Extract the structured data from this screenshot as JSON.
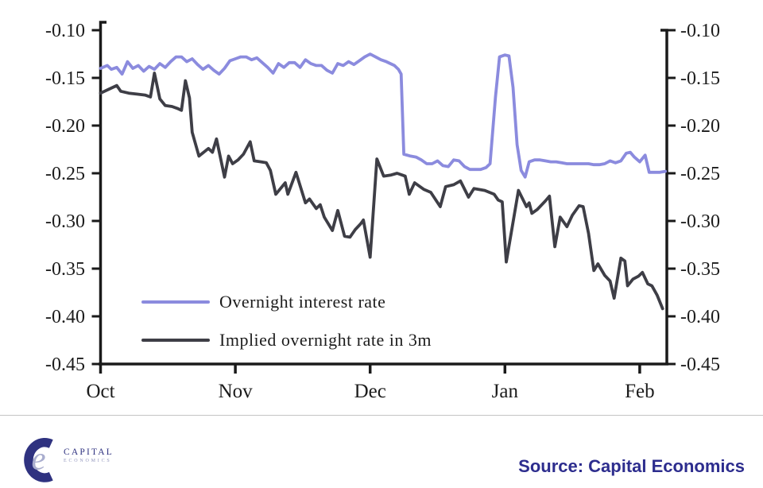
{
  "chart_data": {
    "type": "line",
    "title": "",
    "xlabel": "",
    "ylabel": "",
    "x_unit": "months after Oct tick (0=Oct, 1=Nov, 2=Dec, 3=Jan, 4=Feb)",
    "ylim": [
      -0.45,
      -0.1
    ],
    "y_tick_step": 0.05,
    "y_tick_values": [
      -0.1,
      -0.15,
      -0.2,
      -0.25,
      -0.3,
      -0.35,
      -0.4,
      -0.45
    ],
    "y_tick_labels": [
      "-0.10",
      "-0.15",
      "-0.20",
      "-0.25",
      "-0.30",
      "-0.35",
      "-0.40",
      "-0.45"
    ],
    "x_tick_labels": [
      "Oct",
      "Nov",
      "Dec",
      "Jan",
      "Feb"
    ],
    "y_axis_sides": "both",
    "grid": false,
    "legend_position": "inside-bottom-left",
    "series": [
      {
        "name": "Overnight interest rate",
        "color": "#8b8bde",
        "points": [
          [
            0.0,
            -0.14
          ],
          [
            0.05,
            -0.137
          ],
          [
            0.08,
            -0.141
          ],
          [
            0.12,
            -0.139
          ],
          [
            0.16,
            -0.146
          ],
          [
            0.2,
            -0.133
          ],
          [
            0.24,
            -0.14
          ],
          [
            0.28,
            -0.137
          ],
          [
            0.32,
            -0.143
          ],
          [
            0.36,
            -0.138
          ],
          [
            0.4,
            -0.141
          ],
          [
            0.44,
            -0.135
          ],
          [
            0.48,
            -0.139
          ],
          [
            0.52,
            -0.133
          ],
          [
            0.56,
            -0.128
          ],
          [
            0.6,
            -0.128
          ],
          [
            0.64,
            -0.133
          ],
          [
            0.68,
            -0.13
          ],
          [
            0.72,
            -0.136
          ],
          [
            0.76,
            -0.141
          ],
          [
            0.8,
            -0.137
          ],
          [
            0.84,
            -0.142
          ],
          [
            0.88,
            -0.146
          ],
          [
            0.92,
            -0.14
          ],
          [
            0.96,
            -0.132
          ],
          [
            1.0,
            -0.13
          ],
          [
            1.04,
            -0.128
          ],
          [
            1.08,
            -0.128
          ],
          [
            1.12,
            -0.131
          ],
          [
            1.16,
            -0.129
          ],
          [
            1.2,
            -0.134
          ],
          [
            1.24,
            -0.139
          ],
          [
            1.28,
            -0.145
          ],
          [
            1.32,
            -0.135
          ],
          [
            1.36,
            -0.139
          ],
          [
            1.4,
            -0.134
          ],
          [
            1.44,
            -0.134
          ],
          [
            1.48,
            -0.139
          ],
          [
            1.52,
            -0.131
          ],
          [
            1.56,
            -0.135
          ],
          [
            1.6,
            -0.137
          ],
          [
            1.64,
            -0.137
          ],
          [
            1.68,
            -0.142
          ],
          [
            1.72,
            -0.145
          ],
          [
            1.76,
            -0.135
          ],
          [
            1.8,
            -0.137
          ],
          [
            1.84,
            -0.133
          ],
          [
            1.88,
            -0.136
          ],
          [
            1.92,
            -0.132
          ],
          [
            1.96,
            -0.128
          ],
          [
            2.0,
            -0.125
          ],
          [
            2.04,
            -0.128
          ],
          [
            2.08,
            -0.131
          ],
          [
            2.12,
            -0.133
          ],
          [
            2.15,
            -0.135
          ],
          [
            2.18,
            -0.137
          ],
          [
            2.21,
            -0.141
          ],
          [
            2.23,
            -0.146
          ],
          [
            2.25,
            -0.23
          ],
          [
            2.3,
            -0.232
          ],
          [
            2.34,
            -0.233
          ],
          [
            2.38,
            -0.236
          ],
          [
            2.42,
            -0.24
          ],
          [
            2.46,
            -0.24
          ],
          [
            2.5,
            -0.237
          ],
          [
            2.54,
            -0.242
          ],
          [
            2.58,
            -0.243
          ],
          [
            2.62,
            -0.236
          ],
          [
            2.66,
            -0.237
          ],
          [
            2.7,
            -0.243
          ],
          [
            2.74,
            -0.246
          ],
          [
            2.78,
            -0.246
          ],
          [
            2.82,
            -0.246
          ],
          [
            2.86,
            -0.244
          ],
          [
            2.89,
            -0.24
          ],
          [
            2.93,
            -0.17
          ],
          [
            2.96,
            -0.128
          ],
          [
            3.0,
            -0.126
          ],
          [
            3.03,
            -0.127
          ],
          [
            3.06,
            -0.16
          ],
          [
            3.09,
            -0.22
          ],
          [
            3.12,
            -0.247
          ],
          [
            3.15,
            -0.254
          ],
          [
            3.18,
            -0.238
          ],
          [
            3.22,
            -0.236
          ],
          [
            3.26,
            -0.236
          ],
          [
            3.3,
            -0.237
          ],
          [
            3.34,
            -0.238
          ],
          [
            3.38,
            -0.238
          ],
          [
            3.42,
            -0.239
          ],
          [
            3.46,
            -0.24
          ],
          [
            3.5,
            -0.24
          ],
          [
            3.54,
            -0.24
          ],
          [
            3.58,
            -0.24
          ],
          [
            3.62,
            -0.24
          ],
          [
            3.66,
            -0.241
          ],
          [
            3.7,
            -0.241
          ],
          [
            3.74,
            -0.24
          ],
          [
            3.78,
            -0.237
          ],
          [
            3.82,
            -0.239
          ],
          [
            3.86,
            -0.237
          ],
          [
            3.9,
            -0.229
          ],
          [
            3.93,
            -0.228
          ],
          [
            3.96,
            -0.233
          ],
          [
            4.0,
            -0.238
          ],
          [
            4.04,
            -0.231
          ],
          [
            4.07,
            -0.249
          ],
          [
            4.11,
            -0.249
          ],
          [
            4.15,
            -0.249
          ],
          [
            4.19,
            -0.248
          ]
        ]
      },
      {
        "name": "Implied overnight rate in 3m",
        "color": "#3e3e46",
        "points": [
          [
            0.0,
            -0.166
          ],
          [
            0.06,
            -0.162
          ],
          [
            0.12,
            -0.158
          ],
          [
            0.15,
            -0.164
          ],
          [
            0.21,
            -0.166
          ],
          [
            0.27,
            -0.167
          ],
          [
            0.33,
            -0.168
          ],
          [
            0.37,
            -0.17
          ],
          [
            0.4,
            -0.145
          ],
          [
            0.44,
            -0.172
          ],
          [
            0.48,
            -0.179
          ],
          [
            0.53,
            -0.18
          ],
          [
            0.57,
            -0.182
          ],
          [
            0.6,
            -0.184
          ],
          [
            0.63,
            -0.153
          ],
          [
            0.66,
            -0.171
          ],
          [
            0.68,
            -0.207
          ],
          [
            0.73,
            -0.232
          ],
          [
            0.8,
            -0.224
          ],
          [
            0.83,
            -0.228
          ],
          [
            0.86,
            -0.214
          ],
          [
            0.92,
            -0.254
          ],
          [
            0.95,
            -0.232
          ],
          [
            0.98,
            -0.24
          ],
          [
            1.02,
            -0.236
          ],
          [
            1.06,
            -0.23
          ],
          [
            1.11,
            -0.217
          ],
          [
            1.14,
            -0.237
          ],
          [
            1.19,
            -0.238
          ],
          [
            1.23,
            -0.239
          ],
          [
            1.26,
            -0.247
          ],
          [
            1.3,
            -0.272
          ],
          [
            1.37,
            -0.26
          ],
          [
            1.39,
            -0.272
          ],
          [
            1.45,
            -0.249
          ],
          [
            1.52,
            -0.281
          ],
          [
            1.55,
            -0.277
          ],
          [
            1.6,
            -0.287
          ],
          [
            1.63,
            -0.283
          ],
          [
            1.66,
            -0.296
          ],
          [
            1.72,
            -0.31
          ],
          [
            1.76,
            -0.289
          ],
          [
            1.81,
            -0.316
          ],
          [
            1.85,
            -0.317
          ],
          [
            1.89,
            -0.309
          ],
          [
            1.93,
            -0.303
          ],
          [
            1.95,
            -0.299
          ],
          [
            2.0,
            -0.338
          ],
          [
            2.05,
            -0.235
          ],
          [
            2.1,
            -0.253
          ],
          [
            2.15,
            -0.252
          ],
          [
            2.2,
            -0.25
          ],
          [
            2.26,
            -0.253
          ],
          [
            2.29,
            -0.272
          ],
          [
            2.33,
            -0.26
          ],
          [
            2.4,
            -0.267
          ],
          [
            2.45,
            -0.27
          ],
          [
            2.52,
            -0.285
          ],
          [
            2.56,
            -0.264
          ],
          [
            2.62,
            -0.262
          ],
          [
            2.67,
            -0.258
          ],
          [
            2.73,
            -0.275
          ],
          [
            2.77,
            -0.266
          ],
          [
            2.85,
            -0.268
          ],
          [
            2.92,
            -0.272
          ],
          [
            2.95,
            -0.278
          ],
          [
            2.98,
            -0.28
          ],
          [
            3.01,
            -0.343
          ],
          [
            3.1,
            -0.268
          ],
          [
            3.16,
            -0.285
          ],
          [
            3.18,
            -0.281
          ],
          [
            3.2,
            -0.292
          ],
          [
            3.24,
            -0.288
          ],
          [
            3.3,
            -0.279
          ],
          [
            3.33,
            -0.274
          ],
          [
            3.37,
            -0.327
          ],
          [
            3.41,
            -0.296
          ],
          [
            3.46,
            -0.306
          ],
          [
            3.5,
            -0.294
          ],
          [
            3.55,
            -0.284
          ],
          [
            3.58,
            -0.285
          ],
          [
            3.62,
            -0.313
          ],
          [
            3.66,
            -0.352
          ],
          [
            3.69,
            -0.345
          ],
          [
            3.74,
            -0.357
          ],
          [
            3.78,
            -0.363
          ],
          [
            3.81,
            -0.381
          ],
          [
            3.86,
            -0.339
          ],
          [
            3.89,
            -0.342
          ],
          [
            3.91,
            -0.368
          ],
          [
            3.95,
            -0.361
          ],
          [
            3.99,
            -0.358
          ],
          [
            4.02,
            -0.354
          ],
          [
            4.06,
            -0.366
          ],
          [
            4.09,
            -0.368
          ],
          [
            4.13,
            -0.378
          ],
          [
            4.17,
            -0.392
          ]
        ]
      }
    ]
  },
  "footer": {
    "source_label": "Source: Capital Economics",
    "source_color": "#2d2d8e",
    "logo": {
      "letter": "e",
      "text_top": "CAPITAL",
      "text_bottom": "ECONOMICS"
    }
  },
  "colors": {
    "axis": "#1a1a1a",
    "divider": "#c4c4c4",
    "logo_navy": "#2f3280",
    "logo_light": "#a9adce"
  }
}
